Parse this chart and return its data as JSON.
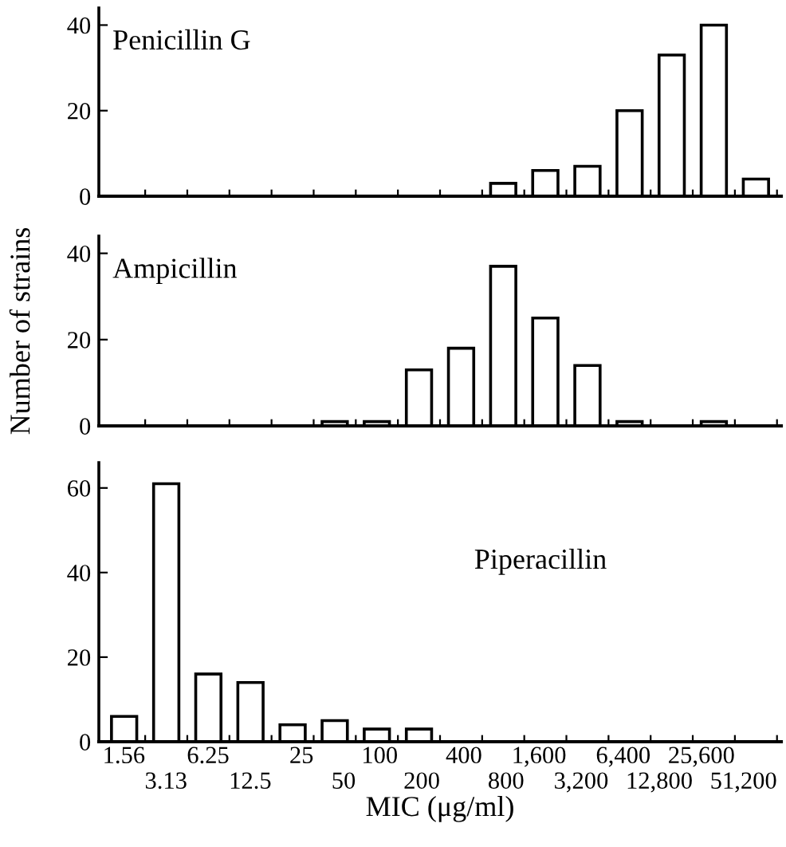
{
  "chart_data": [
    {
      "type": "bar",
      "title": "Penicillin G",
      "categories": [
        "1.56",
        "3.13",
        "6.25",
        "12.5",
        "25",
        "50",
        "100",
        "200",
        "400",
        "800",
        "1,600",
        "3,200",
        "6,400",
        "12,800",
        "25,600",
        "51,200"
      ],
      "values": [
        0,
        0,
        0,
        0,
        0,
        0,
        0,
        0,
        0,
        3,
        6,
        7,
        20,
        33,
        40,
        4
      ],
      "color": "#ffffff",
      "ylim": [
        0,
        44
      ],
      "yticks": [
        0,
        20,
        40
      ],
      "tick_labels": "y",
      "grid": false,
      "legend": false
    },
    {
      "type": "bar",
      "title": "Ampicillin",
      "ylabel": "Number of strains",
      "categories": [
        "1.56",
        "3.13",
        "6.25",
        "12.5",
        "25",
        "50",
        "100",
        "200",
        "400",
        "800",
        "1,600",
        "3,200",
        "6,400",
        "12,800",
        "25,600",
        "51,200"
      ],
      "values": [
        0,
        0,
        0,
        0,
        0,
        1,
        1,
        13,
        18,
        37,
        25,
        14,
        1,
        0,
        1,
        0
      ],
      "color": "#ffffff",
      "ylim": [
        0,
        44
      ],
      "yticks": [
        0,
        20,
        40
      ],
      "tick_labels": "y",
      "grid": false,
      "legend": false
    },
    {
      "type": "bar",
      "title": "Piperacillin",
      "xlabel": "MIC (μg/ml)",
      "categories": [
        "1.56",
        "3.13",
        "6.25",
        "12.5",
        "25",
        "50",
        "100",
        "200",
        "400",
        "800",
        "1,600",
        "3,200",
        "6,400",
        "12,800",
        "25,600",
        "51,200"
      ],
      "values": [
        6,
        61,
        16,
        14,
        4,
        5,
        3,
        3,
        0,
        0,
        0,
        0,
        0,
        0,
        0,
        0
      ],
      "color": "#ffffff",
      "ylim": [
        0,
        66
      ],
      "yticks": [
        0,
        20,
        40,
        60
      ],
      "grid": false,
      "legend": false
    }
  ]
}
